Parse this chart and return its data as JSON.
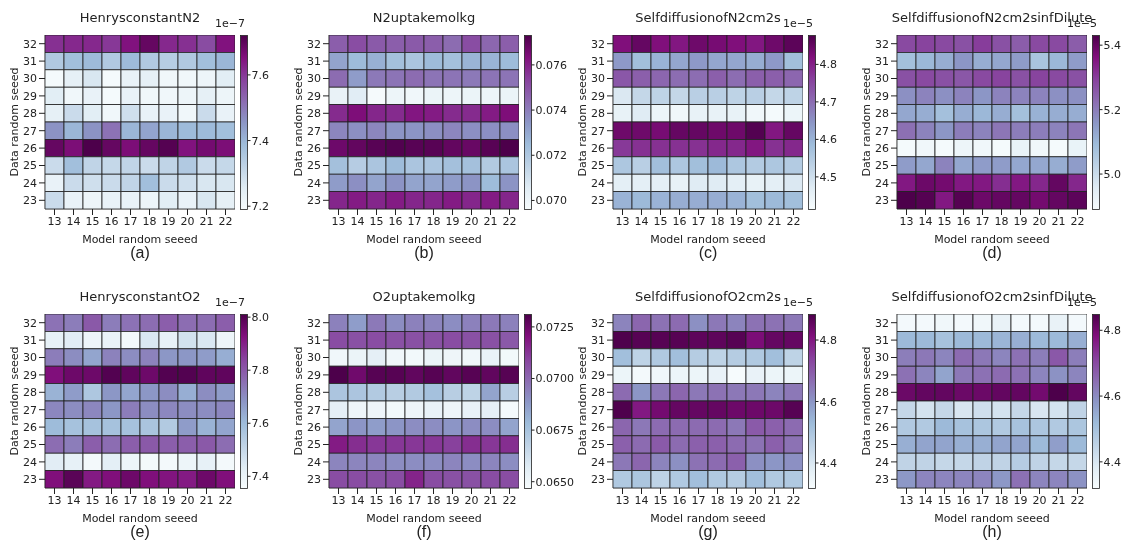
{
  "chart_data": [
    {
      "type": "heatmap",
      "title": "HenrysconstantN2",
      "xlabel": "Model random seeed",
      "ylabel": "Data random seeed",
      "clabel": "1e−7",
      "annotations": [
        "(a)"
      ],
      "categories": [
        "13",
        "14",
        "15",
        "16",
        "17",
        "18",
        "19",
        "20",
        "21",
        "22"
      ],
      "y_categories": [
        "32",
        "31",
        "30",
        "29",
        "28",
        "27",
        "26",
        "25",
        "24",
        "23"
      ],
      "clim": [
        7.19,
        7.72
      ],
      "cticks": [
        7.2,
        7.4,
        7.6
      ],
      "cells": [
        [
          7.61,
          7.62,
          7.62,
          7.6,
          7.65,
          7.69,
          7.62,
          7.61,
          7.57,
          7.65
        ],
        [
          7.35,
          7.38,
          7.39,
          7.35,
          7.39,
          7.35,
          7.34,
          7.35,
          7.38,
          7.4
        ],
        [
          7.2,
          7.24,
          7.27,
          7.2,
          7.23,
          7.24,
          7.21,
          7.21,
          7.22,
          7.25
        ],
        [
          7.25,
          7.21,
          7.23,
          7.2,
          7.23,
          7.21,
          7.21,
          7.22,
          7.24,
          7.22
        ],
        [
          7.24,
          7.3,
          7.25,
          7.21,
          7.29,
          7.23,
          7.23,
          7.21,
          7.3,
          7.23
        ],
        [
          7.46,
          7.4,
          7.46,
          7.51,
          7.4,
          7.43,
          7.4,
          7.39,
          7.39,
          7.38
        ],
        [
          7.69,
          7.66,
          7.72,
          7.69,
          7.66,
          7.69,
          7.71,
          7.65,
          7.67,
          7.66
        ],
        [
          7.3,
          7.38,
          7.32,
          7.31,
          7.32,
          7.3,
          7.32,
          7.35,
          7.3,
          7.31
        ],
        [
          7.23,
          7.3,
          7.29,
          7.3,
          7.32,
          7.38,
          7.3,
          7.29,
          7.27,
          7.27
        ],
        [
          7.3,
          7.23,
          7.22,
          7.23,
          7.23,
          7.22,
          7.25,
          7.23,
          7.27,
          7.24
        ]
      ]
    },
    {
      "type": "heatmap",
      "title": "N2uptakemolkg",
      "xlabel": "Model random seeed",
      "ylabel": "Data random seeed",
      "annotations": [
        "(b)"
      ],
      "categories": [
        "13",
        "14",
        "15",
        "16",
        "17",
        "18",
        "19",
        "20",
        "21",
        "22"
      ],
      "y_categories": [
        "32",
        "31",
        "30",
        "29",
        "28",
        "27",
        "26",
        "25",
        "24",
        "23"
      ],
      "clim": [
        0.0696,
        0.0773
      ],
      "cticks": [
        {
          "value": 0.07,
          "label": "0.070"
        },
        0.072,
        0.074,
        0.076
      ],
      "cells": [
        [
          0.0747,
          0.0751,
          0.0748,
          0.0747,
          0.0748,
          0.0747,
          0.0744,
          0.0751,
          0.0745,
          0.0747
        ],
        [
          0.0731,
          0.0725,
          0.0728,
          0.0723,
          0.0721,
          0.0725,
          0.0723,
          0.0727,
          0.0727,
          0.0725
        ],
        [
          0.0744,
          0.0733,
          0.0741,
          0.0742,
          0.0744,
          0.0742,
          0.0742,
          0.0741,
          0.0742,
          0.0742
        ],
        [
          0.0702,
          0.0705,
          0.0697,
          0.07,
          0.0699,
          0.0701,
          0.07,
          0.0701,
          0.07,
          0.0701
        ],
        [
          0.0758,
          0.0764,
          0.0759,
          0.0758,
          0.0762,
          0.0761,
          0.0758,
          0.0758,
          0.0761,
          0.0764
        ],
        [
          0.0738,
          0.0736,
          0.0738,
          0.0735,
          0.0735,
          0.0736,
          0.0738,
          0.0736,
          0.0736,
          0.0736
        ],
        [
          0.0767,
          0.0769,
          0.0771,
          0.0772,
          0.0771,
          0.0771,
          0.0769,
          0.0768,
          0.0771,
          0.0773
        ],
        [
          0.0723,
          0.0718,
          0.0721,
          0.0725,
          0.0721,
          0.0721,
          0.0723,
          0.0723,
          0.0719,
          0.0721
        ],
        [
          0.0733,
          0.0736,
          0.0731,
          0.0735,
          0.0731,
          0.0731,
          0.0733,
          0.0735,
          0.0725,
          0.0735
        ],
        [
          0.0759,
          0.0761,
          0.0759,
          0.0761,
          0.0759,
          0.0759,
          0.0761,
          0.0759,
          0.0761,
          0.0759
        ]
      ]
    },
    {
      "type": "heatmap",
      "title": "SelfdiffusionofN2cm2s",
      "xlabel": "Model random seeed",
      "ylabel": "Data random seeed",
      "clabel": "1e−5",
      "annotations": [
        "(c)"
      ],
      "categories": [
        "13",
        "14",
        "15",
        "16",
        "17",
        "18",
        "19",
        "20",
        "21",
        "22"
      ],
      "y_categories": [
        "32",
        "31",
        "30",
        "29",
        "28",
        "27",
        "26",
        "25",
        "24",
        "23"
      ],
      "clim": [
        4.413,
        4.877
      ],
      "cticks": [
        4.5,
        4.6,
        4.7,
        4.8
      ],
      "cells": [
        [
          4.82,
          4.85,
          4.82,
          4.81,
          4.84,
          4.83,
          4.82,
          4.81,
          4.84,
          4.86
        ],
        [
          4.64,
          4.58,
          4.6,
          4.62,
          4.64,
          4.62,
          4.62,
          4.61,
          4.64,
          4.58
        ],
        [
          4.73,
          4.72,
          4.71,
          4.7,
          4.7,
          4.72,
          4.7,
          4.72,
          4.72,
          4.71
        ],
        [
          4.48,
          4.52,
          4.53,
          4.52,
          4.54,
          4.54,
          4.53,
          4.54,
          4.52,
          4.53
        ],
        [
          4.45,
          4.47,
          4.44,
          4.43,
          4.45,
          4.45,
          4.45,
          4.43,
          4.42,
          4.44
        ],
        [
          4.84,
          4.84,
          4.83,
          4.85,
          4.85,
          4.84,
          4.84,
          4.87,
          4.81,
          4.85
        ],
        [
          4.77,
          4.78,
          4.78,
          4.78,
          4.78,
          4.79,
          4.79,
          4.81,
          4.78,
          4.79
        ],
        [
          4.56,
          4.54,
          4.58,
          4.56,
          4.58,
          4.59,
          4.56,
          4.55,
          4.56,
          4.55
        ],
        [
          4.46,
          4.46,
          4.46,
          4.45,
          4.47,
          4.47,
          4.46,
          4.45,
          4.46,
          4.48
        ],
        [
          4.6,
          4.59,
          4.6,
          4.61,
          4.61,
          4.61,
          4.6,
          4.58,
          4.59,
          4.58
        ]
      ]
    },
    {
      "type": "heatmap",
      "title": "SelfdiffusionofN2cm2sinfDilute",
      "xlabel": "Model random seeed",
      "ylabel": "Data random seeed",
      "clabel": "1e−5",
      "annotations": [
        "(d)"
      ],
      "categories": [
        "13",
        "14",
        "15",
        "16",
        "17",
        "18",
        "19",
        "20",
        "21",
        "22"
      ],
      "y_categories": [
        "32",
        "31",
        "30",
        "29",
        "28",
        "27",
        "26",
        "25",
        "24",
        "23"
      ],
      "clim": [
        4.89,
        5.43
      ],
      "cticks": [
        {
          "value": 5,
          "label": "5.0"
        },
        5.2,
        5.4
      ],
      "cells": [
        [
          5.28,
          5.29,
          5.28,
          5.27,
          5.3,
          5.27,
          5.25,
          5.28,
          5.28,
          5.25
        ],
        [
          5.08,
          5.1,
          5.12,
          5.16,
          5.12,
          5.13,
          5.15,
          5.07,
          5.1,
          5.15
        ],
        [
          5.27,
          5.28,
          5.27,
          5.26,
          5.28,
          5.29,
          5.27,
          5.29,
          5.28,
          5.27
        ],
        [
          5.17,
          5.19,
          5.17,
          5.19,
          5.16,
          5.19,
          5.19,
          5.19,
          5.17,
          5.17
        ],
        [
          5.13,
          5.12,
          5.08,
          5.12,
          5.1,
          5.12,
          5.08,
          5.11,
          5.12,
          5.12
        ],
        [
          5.22,
          5.19,
          5.16,
          5.2,
          5.19,
          5.21,
          5.2,
          5.2,
          5.19,
          5.21
        ],
        [
          4.9,
          4.91,
          4.9,
          4.92,
          4.91,
          4.9,
          4.93,
          4.91,
          4.9,
          4.93
        ],
        [
          5.15,
          5.13,
          5.19,
          5.13,
          5.15,
          5.15,
          5.13,
          5.13,
          5.12,
          5.15
        ],
        [
          5.35,
          5.39,
          5.38,
          5.35,
          5.35,
          5.32,
          5.35,
          5.33,
          5.4,
          5.33
        ],
        [
          5.43,
          5.42,
          5.35,
          5.42,
          5.39,
          5.4,
          5.4,
          5.38,
          5.4,
          5.41
        ]
      ]
    },
    {
      "type": "heatmap",
      "title": "HenrysconstantO2",
      "xlabel": "Model random seeed",
      "ylabel": "Data random seeed",
      "clabel": "1e−7",
      "annotations": [
        "(e)"
      ],
      "categories": [
        "13",
        "14",
        "15",
        "16",
        "17",
        "18",
        "19",
        "20",
        "21",
        "22"
      ],
      "y_categories": [
        "32",
        "31",
        "30",
        "29",
        "28",
        "27",
        "26",
        "25",
        "24",
        "23"
      ],
      "clim": [
        7.354,
        8.01
      ],
      "cticks": [
        7.4,
        7.6,
        7.8,
        {
          "value": 8,
          "label": "8.0"
        }
      ],
      "cells": [
        [
          7.75,
          7.73,
          7.8,
          7.73,
          7.75,
          7.76,
          7.79,
          7.76,
          7.76,
          7.79
        ],
        [
          7.41,
          7.43,
          7.39,
          7.4,
          7.37,
          7.45,
          7.41,
          7.47,
          7.45,
          7.39
        ],
        [
          7.73,
          7.7,
          7.65,
          7.72,
          7.7,
          7.72,
          7.68,
          7.68,
          7.67,
          7.63
        ],
        [
          7.93,
          7.96,
          7.96,
          8.0,
          7.98,
          7.96,
          8.0,
          8.0,
          7.98,
          7.98
        ],
        [
          7.62,
          7.67,
          7.56,
          7.68,
          7.65,
          7.68,
          7.7,
          7.63,
          7.7,
          7.67
        ],
        [
          7.71,
          7.7,
          7.71,
          7.68,
          7.73,
          7.7,
          7.71,
          7.7,
          7.7,
          7.71
        ],
        [
          7.6,
          7.58,
          7.58,
          7.58,
          7.58,
          7.57,
          7.55,
          7.67,
          7.62,
          7.65
        ],
        [
          7.76,
          7.73,
          7.79,
          7.76,
          7.79,
          7.8,
          7.79,
          7.79,
          7.8,
          7.76
        ],
        [
          7.43,
          7.41,
          7.37,
          7.42,
          7.39,
          7.37,
          7.37,
          7.39,
          7.41,
          7.37
        ],
        [
          7.93,
          7.99,
          7.91,
          7.93,
          7.96,
          7.93,
          7.92,
          7.91,
          7.96,
          7.93
        ]
      ]
    },
    {
      "type": "heatmap",
      "title": "O2uptakemolkg",
      "xlabel": "Model random seeed",
      "ylabel": "Data random seeed",
      "annotations": [
        "(f)"
      ],
      "categories": [
        "13",
        "14",
        "15",
        "16",
        "17",
        "18",
        "19",
        "20",
        "21",
        "22"
      ],
      "y_categories": [
        "32",
        "31",
        "30",
        "29",
        "28",
        "27",
        "26",
        "25",
        "24",
        "23"
      ],
      "clim": [
        0.06467,
        0.0731
      ],
      "cticks": [
        {
          "value": 0.065,
          "label": "0.0650"
        },
        0.0675,
        {
          "value": 0.07,
          "label": "0.0700"
        },
        0.0725
      ],
      "cells": [
        [
          0.0694,
          0.0687,
          0.0696,
          0.0691,
          0.0694,
          0.0693,
          0.0691,
          0.0694,
          0.0696,
          0.0694
        ],
        [
          0.0707,
          0.0706,
          0.0707,
          0.0706,
          0.0706,
          0.0706,
          0.0707,
          0.0706,
          0.0706,
          0.0704
        ],
        [
          0.065,
          0.0652,
          0.0655,
          0.065,
          0.0649,
          0.0652,
          0.0651,
          0.065,
          0.0653,
          0.0649
        ],
        [
          0.0731,
          0.0724,
          0.0729,
          0.0729,
          0.0727,
          0.0729,
          0.0727,
          0.0729,
          0.0727,
          0.0729
        ],
        [
          0.0674,
          0.0674,
          0.0672,
          0.067,
          0.0672,
          0.0676,
          0.067,
          0.0668,
          0.0685,
          0.067
        ],
        [
          0.0655,
          0.0651,
          0.0651,
          0.0649,
          0.0651,
          0.0653,
          0.0651,
          0.0653,
          0.0655,
          0.0648
        ],
        [
          0.0685,
          0.0689,
          0.0687,
          0.0689,
          0.0691,
          0.0691,
          0.0689,
          0.0691,
          0.0691,
          0.0685
        ],
        [
          0.0718,
          0.0714,
          0.0712,
          0.0712,
          0.0712,
          0.0712,
          0.071,
          0.0714,
          0.0712,
          0.0714
        ],
        [
          0.0693,
          0.0693,
          0.0693,
          0.0691,
          0.0691,
          0.0691,
          0.0693,
          0.0691,
          0.0693,
          0.0691
        ],
        [
          0.0707,
          0.0707,
          0.0706,
          0.0707,
          0.0716,
          0.0707,
          0.0706,
          0.0706,
          0.0707,
          0.0707
        ]
      ]
    },
    {
      "type": "heatmap",
      "title": "SelfdiffusionofO2cm2s",
      "xlabel": "Model random seeed",
      "ylabel": "Data random seeed",
      "clabel": "1e−5",
      "annotations": [
        "(g)"
      ],
      "categories": [
        "13",
        "14",
        "15",
        "16",
        "17",
        "18",
        "19",
        "20",
        "21",
        "22"
      ],
      "y_categories": [
        "32",
        "31",
        "30",
        "29",
        "28",
        "27",
        "26",
        "25",
        "24",
        "23"
      ],
      "clim": [
        4.317,
        4.883
      ],
      "cticks": [
        4.4,
        4.6,
        4.8
      ],
      "cells": [
        [
          4.63,
          4.68,
          4.66,
          4.67,
          4.61,
          4.65,
          4.63,
          4.66,
          4.66,
          4.65
        ],
        [
          4.88,
          4.87,
          4.87,
          4.87,
          4.86,
          4.86,
          4.87,
          4.82,
          4.85,
          4.85
        ],
        [
          4.52,
          4.46,
          4.49,
          4.52,
          4.48,
          4.46,
          4.48,
          4.49,
          4.52,
          4.46
        ],
        [
          4.35,
          4.33,
          4.34,
          4.35,
          4.35,
          4.36,
          4.32,
          4.36,
          4.35,
          4.35
        ],
        [
          4.67,
          4.6,
          4.65,
          4.68,
          4.65,
          4.66,
          4.65,
          4.65,
          4.63,
          4.65
        ],
        [
          4.88,
          4.8,
          4.83,
          4.85,
          4.85,
          4.85,
          4.84,
          4.84,
          4.84,
          4.87
        ],
        [
          4.68,
          4.65,
          4.67,
          4.67,
          4.67,
          4.67,
          4.65,
          4.7,
          4.69,
          4.67
        ],
        [
          4.69,
          4.67,
          4.7,
          4.67,
          4.69,
          4.69,
          4.67,
          4.66,
          4.69,
          4.66
        ],
        [
          4.65,
          4.68,
          4.63,
          4.61,
          4.66,
          4.67,
          4.69,
          4.61,
          4.6,
          4.61
        ],
        [
          4.49,
          4.5,
          4.46,
          4.49,
          4.52,
          4.49,
          4.48,
          4.52,
          4.49,
          4.49
        ]
      ]
    },
    {
      "type": "heatmap",
      "title": "SelfdiffusionofO2cm2sinfDilute",
      "xlabel": "Model random seeed",
      "ylabel": "Data random seeed",
      "clabel": "1e−5",
      "annotations": [
        "(h)"
      ],
      "categories": [
        "13",
        "14",
        "15",
        "16",
        "17",
        "18",
        "19",
        "20",
        "21",
        "22"
      ],
      "y_categories": [
        "32",
        "31",
        "30",
        "29",
        "28",
        "27",
        "26",
        "25",
        "24",
        "23"
      ],
      "clim": [
        4.319,
        4.848
      ],
      "cticks": [
        4.4,
        4.6,
        4.8
      ],
      "cells": [
        [
          4.33,
          4.33,
          4.34,
          4.33,
          4.34,
          4.36,
          4.33,
          4.33,
          4.36,
          4.33
        ],
        [
          4.52,
          4.52,
          4.5,
          4.52,
          4.52,
          4.53,
          4.54,
          4.52,
          4.52,
          4.54
        ],
        [
          4.62,
          4.63,
          4.61,
          4.65,
          4.63,
          4.61,
          4.64,
          4.62,
          4.68,
          4.62
        ],
        [
          4.64,
          4.61,
          4.56,
          4.63,
          4.64,
          4.65,
          4.64,
          4.61,
          4.59,
          4.61
        ],
        [
          4.81,
          4.82,
          4.82,
          4.81,
          4.81,
          4.82,
          4.82,
          4.8,
          4.85,
          4.82
        ],
        [
          4.44,
          4.41,
          4.44,
          4.4,
          4.42,
          4.41,
          4.44,
          4.4,
          4.41,
          4.45
        ],
        [
          4.48,
          4.48,
          4.52,
          4.5,
          4.49,
          4.48,
          4.5,
          4.49,
          4.48,
          4.49
        ],
        [
          4.54,
          4.56,
          4.56,
          4.54,
          4.54,
          4.56,
          4.56,
          4.52,
          4.57,
          4.52
        ],
        [
          4.45,
          4.45,
          4.44,
          4.44,
          4.45,
          4.45,
          4.47,
          4.45,
          4.44,
          4.44
        ],
        [
          4.58,
          4.61,
          4.61,
          4.61,
          4.61,
          4.58,
          4.64,
          4.61,
          4.61,
          4.59
        ]
      ]
    }
  ]
}
